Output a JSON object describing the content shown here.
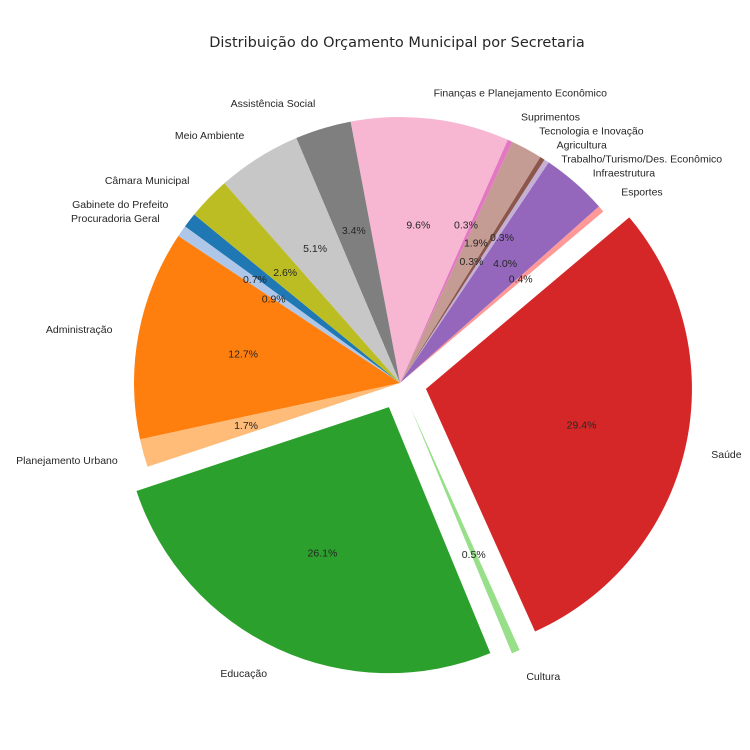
{
  "chart_data": {
    "type": "pie",
    "title": "Distribuição do Orçamento Municipal por Secretaria",
    "start_angle_deg": 140.7,
    "direction": "counterclockwise",
    "slices": [
      {
        "label": "Gabinete do Prefeito",
        "value": 0.9,
        "pct_label": "0.9%",
        "color": "#1f77b4",
        "exploded": false
      },
      {
        "label": "Procuradoria Geral",
        "value": 0.7,
        "pct_label": "0.7%",
        "color": "#aec7e8",
        "exploded": false
      },
      {
        "label": "Administração",
        "value": 12.7,
        "pct_label": "12.7%",
        "color": "#ff7f0e",
        "exploded": false
      },
      {
        "label": "Planejamento Urbano",
        "value": 1.7,
        "pct_label": "1.7%",
        "color": "#ffbb78",
        "exploded": false
      },
      {
        "label": "Educação",
        "value": 26.1,
        "pct_label": "26.1%",
        "color": "#2ca02c",
        "exploded": true
      },
      {
        "label": "Cultura",
        "value": 0.5,
        "pct_label": "0.5%",
        "color": "#98df8a",
        "exploded": true
      },
      {
        "label": "Saúde",
        "value": 29.4,
        "pct_label": "29.4%",
        "color": "#d62728",
        "exploded": true
      },
      {
        "label": "Esportes",
        "value": 0.4,
        "pct_label": "0.4%",
        "color": "#ff9896",
        "exploded": false
      },
      {
        "label": "Infraestrutura",
        "value": 4.0,
        "pct_label": "4.0%",
        "color": "#9467bd",
        "exploded": false
      },
      {
        "label": "Trabalho/Turismo/Des. Econômico",
        "value": 0.3,
        "pct_label": "0.3%",
        "color": "#c5b0d5",
        "exploded": false
      },
      {
        "label": "Agricultura",
        "value": 0.3,
        "pct_label": "0.3%",
        "color": "#8c564b",
        "exploded": false
      },
      {
        "label": "Tecnologia e Inovação",
        "value": 1.9,
        "pct_label": "1.9%",
        "color": "#c49c94",
        "exploded": false
      },
      {
        "label": "Suprimentos",
        "value": 0.3,
        "pct_label": "0.3%",
        "color": "#e377c2",
        "exploded": false
      },
      {
        "label": "Finanças e Planejamento Econômico",
        "value": 9.6,
        "pct_label": "9.6%",
        "color": "#f7b6d2",
        "exploded": false
      },
      {
        "label": "Assistência Social",
        "value": 3.4,
        "pct_label": "3.4%",
        "color": "#7f7f7f",
        "exploded": false
      },
      {
        "label": "Meio Ambiente",
        "value": 5.1,
        "pct_label": "5.1%",
        "color": "#c7c7c7",
        "exploded": false
      },
      {
        "label": "Câmara Municipal",
        "value": 2.6,
        "pct_label": "2.6%",
        "color": "#bcbd22",
        "exploded": false
      }
    ]
  }
}
